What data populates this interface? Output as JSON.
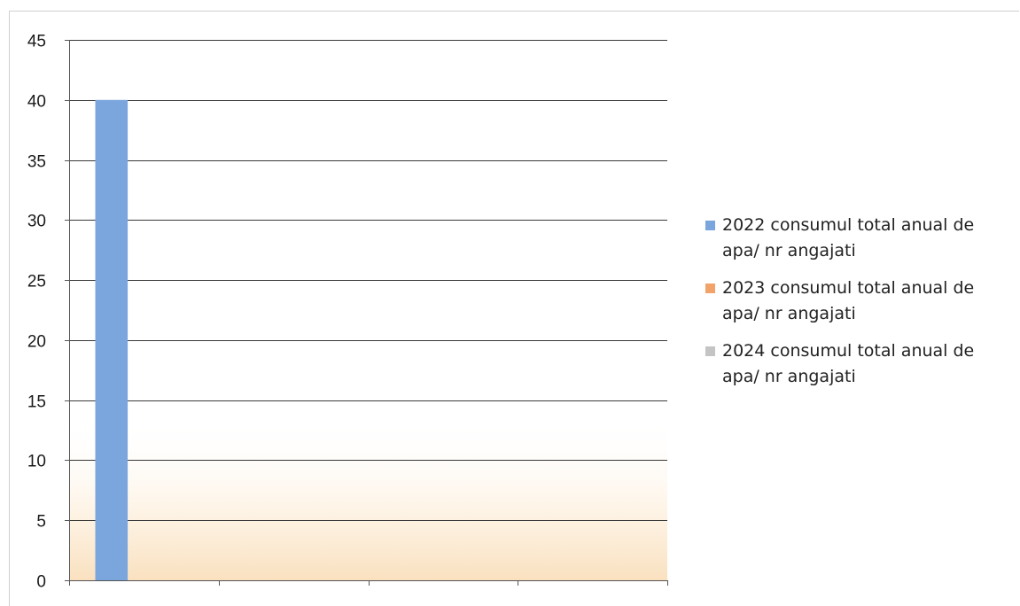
{
  "chart_data": {
    "type": "bar",
    "categories": [
      "",
      "",
      "",
      ""
    ],
    "series": [
      {
        "name": "2022 consumul total anual de apa/ nr angajati",
        "color": "#7aa5dd",
        "values": [
          40,
          0,
          0,
          0
        ]
      },
      {
        "name": "2023 consumul total anual de apa/ nr angajati",
        "color": "#f2a36a",
        "values": [
          0,
          0,
          0,
          0
        ]
      },
      {
        "name": "2024 consumul total anual de apa/ nr angajati",
        "color": "#c4c4c4",
        "values": [
          0,
          0,
          0,
          0
        ]
      }
    ],
    "y_ticks": [
      "0",
      "5",
      "10",
      "15",
      "20",
      "25",
      "30",
      "35",
      "40",
      "45"
    ],
    "ylim": [
      0,
      45
    ],
    "grid": true,
    "legend_position": "right",
    "title": "",
    "xlabel": "",
    "ylabel": ""
  }
}
